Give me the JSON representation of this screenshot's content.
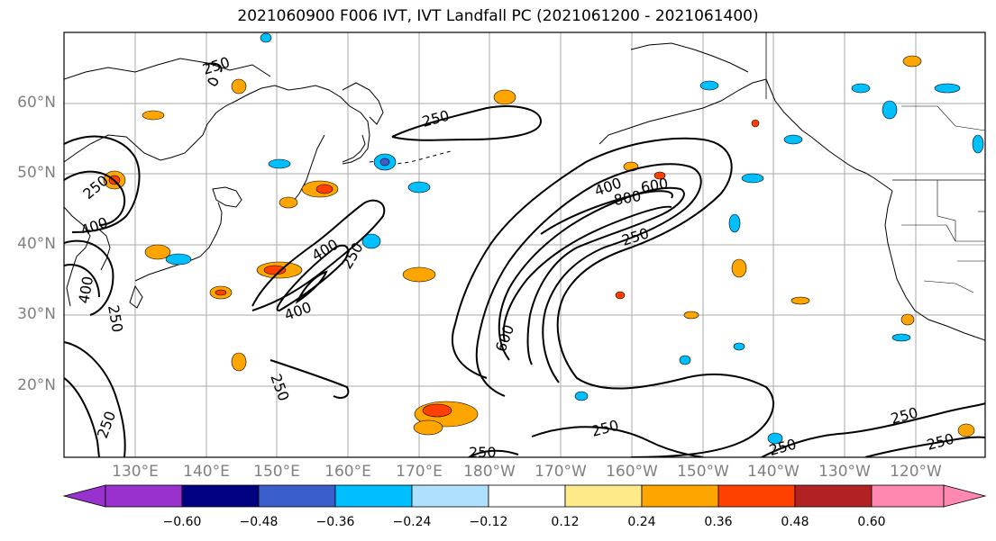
{
  "map": {
    "title": "2021060900 F006 IVT, IVT Landfall PC (2021061200 - 2021061400)",
    "region": "North Pacific",
    "lat_labels": [
      "60°N",
      "50°N",
      "40°N",
      "30°N",
      "20°N"
    ],
    "lon_labels": [
      "130°E",
      "140°E",
      "150°E",
      "160°E",
      "170°E",
      "180°W",
      "170°W",
      "160°W",
      "150°W",
      "140°W",
      "130°W",
      "120°W"
    ],
    "contour_labels": [
      "250",
      "250",
      "250",
      "250",
      "250",
      "250",
      "250",
      "250",
      "250",
      "250",
      "250",
      "250",
      "250",
      "400",
      "400",
      "400",
      "400",
      "400",
      "600",
      "600",
      "800"
    ],
    "colorbar": {
      "tick_labels": [
        "−0.60",
        "−0.48",
        "−0.36",
        "−0.24",
        "−0.12",
        "0.12",
        "0.24",
        "0.36",
        "0.48",
        "0.60"
      ],
      "colors": [
        "#9932cc",
        "#000080",
        "#3a5fcd",
        "#00bfff",
        "#afe0ff",
        "#ffffff",
        "#ffea8a",
        "#ffa500",
        "#ff4000",
        "#b22222",
        "#ff88b0"
      ]
    }
  }
}
